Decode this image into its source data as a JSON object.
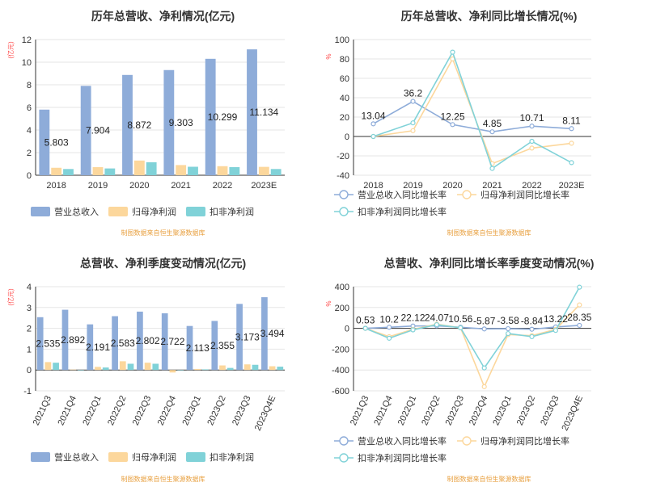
{
  "colors": {
    "revenue": "#8eacd9",
    "net_profit": "#fcd79c",
    "deducted_profit": "#80d2d8",
    "axis": "#333333",
    "grid": "#e6e6e6",
    "unit": "#ff4444",
    "source": "#e8a040"
  },
  "source_note": "制图数据来自恒生聚源数据库",
  "chart_data": [
    {
      "id": "annual_amount",
      "type": "bar",
      "title": "历年总营收、净利情况(亿元)",
      "unit_label": "(亿元)",
      "categories": [
        "2018",
        "2019",
        "2020",
        "2021",
        "2022",
        "2023E"
      ],
      "ylim": [
        0,
        12
      ],
      "yticks": [
        0,
        2,
        4,
        6,
        8,
        10,
        12
      ],
      "series": [
        {
          "name": "营业总收入",
          "values": [
            5.803,
            7.904,
            8.872,
            9.303,
            10.299,
            11.134
          ],
          "labels": [
            "5.803",
            "7.904",
            "8.872",
            "9.303",
            "10.299",
            "11.134"
          ]
        },
        {
          "name": "归母净利润",
          "values": [
            0.66,
            0.72,
            1.3,
            0.9,
            0.8,
            0.74
          ]
        },
        {
          "name": "扣非净利润",
          "values": [
            0.55,
            0.6,
            1.15,
            0.75,
            0.72,
            0.55
          ]
        }
      ]
    },
    {
      "id": "annual_growth",
      "type": "line",
      "title": "历年总营收、净利同比增长情况(%)",
      "unit_label": "%",
      "categories": [
        "2018",
        "2019",
        "2020",
        "2021",
        "2022",
        "2023E"
      ],
      "ylim": [
        -40,
        100
      ],
      "yticks": [
        -40,
        -20,
        0,
        20,
        40,
        60,
        80,
        100
      ],
      "series": [
        {
          "name": "营业总收入同比增长率",
          "values": [
            13.04,
            36.2,
            12.25,
            4.85,
            10.71,
            8.11
          ],
          "labels": [
            "13.04",
            "36.2",
            "12.25",
            "4.85",
            "10.71",
            "8.11"
          ]
        },
        {
          "name": "归母净利润同比增长率",
          "values": [
            0,
            6,
            80,
            -28,
            -12,
            -7
          ]
        },
        {
          "name": "扣非净利润同比增长率",
          "values": [
            0,
            14,
            87,
            -33,
            -5,
            -27
          ]
        }
      ]
    },
    {
      "id": "quarterly_amount",
      "type": "bar",
      "title": "总营收、净利季度变动情况(亿元)",
      "unit_label": "(亿元)",
      "categories": [
        "2021Q3",
        "2021Q4",
        "2022Q1",
        "2022Q2",
        "2022Q3",
        "2022Q4",
        "2023Q1",
        "2023Q2",
        "2023Q3",
        "2023Q4E"
      ],
      "ylim": [
        -1,
        4
      ],
      "yticks": [
        -1,
        0,
        1,
        2,
        3,
        4
      ],
      "series": [
        {
          "name": "营业总收入",
          "values": [
            2.535,
            2.892,
            2.191,
            2.583,
            2.802,
            2.722,
            2.113,
            2.355,
            3.173,
            3.494
          ],
          "labels": [
            "2.535",
            "2.892",
            "2.191",
            "2.583",
            "2.802",
            "2.722",
            "2.113",
            "2.355",
            "3.173",
            "3.494"
          ]
        },
        {
          "name": "归母净利润",
          "values": [
            0.38,
            0.02,
            0.15,
            0.42,
            0.35,
            -0.12,
            0.05,
            0.22,
            0.27,
            0.18
          ]
        },
        {
          "name": "扣非净利润",
          "values": [
            0.35,
            0.0,
            0.12,
            0.3,
            0.3,
            -0.02,
            0.03,
            0.1,
            0.25,
            0.16
          ]
        }
      ]
    },
    {
      "id": "quarterly_growth",
      "type": "line",
      "title": "总营收、净利同比增长率季度变动情况(%)",
      "unit_label": "%",
      "categories": [
        "2021Q3",
        "2021Q4",
        "2022Q1",
        "2022Q2",
        "2022Q3",
        "2022Q4",
        "2023Q1",
        "2023Q2",
        "2023Q3",
        "2023Q4E"
      ],
      "ylim": [
        -600,
        400
      ],
      "yticks": [
        -600,
        -400,
        -200,
        0,
        200,
        400
      ],
      "series": [
        {
          "name": "营业总收入同比增长率",
          "values": [
            0.53,
            10.2,
            22.12,
            24.07,
            10.56,
            -5.87,
            -3.58,
            -8.84,
            13.22,
            28.35
          ],
          "labels": [
            "0.53",
            "10.2",
            "22.12",
            "24.07",
            "10.56",
            "-5.87",
            "-3.58",
            "-8.84",
            "13.22",
            "28.35"
          ]
        },
        {
          "name": "归母净利润同比增长率",
          "values": [
            0,
            -80,
            -10,
            40,
            5,
            -560,
            -60,
            -70,
            -10,
            225
          ]
        },
        {
          "name": "扣非净利润同比增长率",
          "values": [
            0,
            -95,
            -15,
            35,
            5,
            -380,
            -50,
            -80,
            -20,
            395
          ]
        }
      ]
    }
  ]
}
